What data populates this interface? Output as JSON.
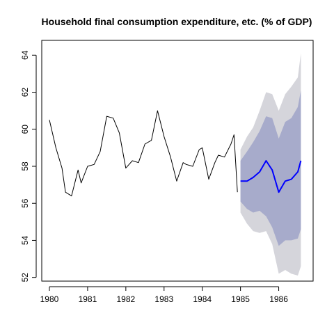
{
  "chart_data": {
    "type": "line",
    "title": "Household final consumption expenditure, etc. (% of GDP)",
    "xlabel": "",
    "ylabel": "",
    "xlim": [
      1979.8,
      1986.9
    ],
    "ylim": [
      51.8,
      64.8
    ],
    "x_ticks": [
      "1980",
      "1981",
      "1982",
      "1983",
      "1984",
      "1985",
      "1986"
    ],
    "y_ticks": [
      "52",
      "54",
      "56",
      "58",
      "60",
      "62",
      "64"
    ],
    "grid": false,
    "legend": "none",
    "series": [
      {
        "role": "history",
        "color": "#000000",
        "x": [
          1980.0,
          1980.17,
          1980.33,
          1980.42,
          1980.58,
          1980.75,
          1980.83,
          1981.0,
          1981.17,
          1981.33,
          1981.5,
          1981.67,
          1981.83,
          1982.0,
          1982.17,
          1982.33,
          1982.5,
          1982.67,
          1982.83,
          1983.0,
          1983.17,
          1983.33,
          1983.5,
          1983.58,
          1983.75,
          1983.92,
          1984.0,
          1984.17,
          1984.33,
          1984.42,
          1984.58,
          1984.75,
          1984.83,
          1984.92
        ],
        "y": [
          60.5,
          59.0,
          57.9,
          56.6,
          56.4,
          57.8,
          57.1,
          58.0,
          58.1,
          58.8,
          60.7,
          60.6,
          59.8,
          57.9,
          58.3,
          58.2,
          59.2,
          59.4,
          61.0,
          59.6,
          58.5,
          57.2,
          58.2,
          58.1,
          58.0,
          58.9,
          59.0,
          57.3,
          58.2,
          58.6,
          58.5,
          59.2,
          59.7,
          56.6
        ]
      },
      {
        "role": "forecast-mean",
        "color": "#0000ff",
        "x": [
          1985.0,
          1985.17,
          1985.33,
          1985.5,
          1985.67,
          1985.83,
          1986.0,
          1986.17,
          1986.33,
          1986.5,
          1986.58
        ],
        "y": [
          57.2,
          57.2,
          57.4,
          57.7,
          58.3,
          57.8,
          56.6,
          57.2,
          57.3,
          57.7,
          58.3
        ],
        "band80_low": [
          56.1,
          55.7,
          55.5,
          55.6,
          55.3,
          54.7,
          53.7,
          54.0,
          54.0,
          54.1,
          54.6
        ],
        "band80_high": [
          58.3,
          58.8,
          59.3,
          59.9,
          60.7,
          60.6,
          59.5,
          60.4,
          60.6,
          61.2,
          62.1
        ],
        "band95_low": [
          55.5,
          54.9,
          54.5,
          54.4,
          54.5,
          53.8,
          52.2,
          52.4,
          52.2,
          52.1,
          52.6
        ],
        "band95_high": [
          58.9,
          59.6,
          60.1,
          61.0,
          62.0,
          61.9,
          61.0,
          61.9,
          62.3,
          62.8,
          64.1
        ]
      }
    ],
    "colors": {
      "band95": "#d5d5db",
      "band80": "#a7abcb",
      "mean": "#0000ff",
      "history": "#000000"
    }
  }
}
